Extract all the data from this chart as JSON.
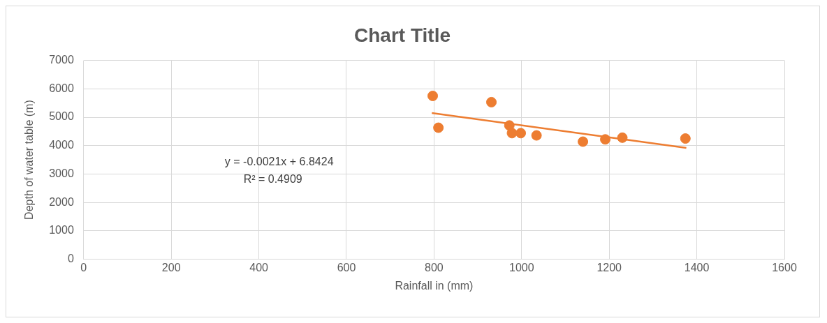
{
  "chart_data": {
    "type": "scatter",
    "title": "Chart Title",
    "xlabel": "Rainfall in (mm)",
    "ylabel": "Depth of water table (m)",
    "xlim": [
      0,
      1600
    ],
    "xticks": [
      0,
      200,
      400,
      600,
      800,
      1000,
      1200,
      1400,
      1600
    ],
    "ylim": [
      0,
      7000
    ],
    "yticks": [
      0,
      1000,
      2000,
      3000,
      4000,
      5000,
      6000,
      7000
    ],
    "grid": true,
    "legend": false,
    "marker": "circle",
    "annotations": [
      "y = -0.0021x + 6.8424",
      "R² = 0.4909"
    ],
    "series": [
      {
        "color": "#ed7d31",
        "x": [
          797,
          810,
          931,
          972,
          978,
          998,
          1034,
          1140,
          1191,
          1230,
          1374
        ],
        "values": [
          5750,
          4630,
          5530,
          4710,
          4440,
          4440,
          4360,
          4140,
          4220,
          4280,
          4250
        ]
      },
      {
        "type": "line",
        "color": "#ed7d31",
        "x": [
          795,
          1376
        ],
        "values": [
          5150,
          3920
        ],
        "marker": "none",
        "line_style": "solid"
      }
    ]
  }
}
